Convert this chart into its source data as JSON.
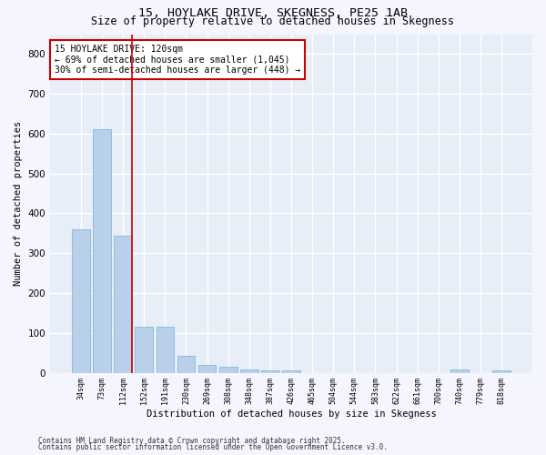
{
  "title": "15, HOYLAKE DRIVE, SKEGNESS, PE25 1AB",
  "subtitle": "Size of property relative to detached houses in Skegness",
  "xlabel": "Distribution of detached houses by size in Skegness",
  "ylabel": "Number of detached properties",
  "categories": [
    "34sqm",
    "73sqm",
    "112sqm",
    "152sqm",
    "191sqm",
    "230sqm",
    "269sqm",
    "308sqm",
    "348sqm",
    "387sqm",
    "426sqm",
    "465sqm",
    "504sqm",
    "544sqm",
    "583sqm",
    "622sqm",
    "661sqm",
    "700sqm",
    "740sqm",
    "779sqm",
    "818sqm"
  ],
  "values": [
    360,
    611,
    343,
    116,
    116,
    42,
    20,
    16,
    8,
    6,
    6,
    0,
    0,
    0,
    0,
    0,
    0,
    0,
    8,
    0,
    6
  ],
  "bar_color": "#b8d0ea",
  "bar_edge_color": "#7aafd4",
  "bg_color": "#e8eef8",
  "grid_color": "#ffffff",
  "vline_x_index": 2.42,
  "vline_color": "#cc0000",
  "annotation_text": "15 HOYLAKE DRIVE: 120sqm\n← 69% of detached houses are smaller (1,045)\n30% of semi-detached houses are larger (448) →",
  "annotation_box_color": "#cc0000",
  "ylim": [
    0,
    850
  ],
  "yticks": [
    0,
    100,
    200,
    300,
    400,
    500,
    600,
    700,
    800
  ],
  "footer_line1": "Contains HM Land Registry data © Crown copyright and database right 2025.",
  "footer_line2": "Contains public sector information licensed under the Open Government Licence v3.0.",
  "title_fontsize": 9.5,
  "subtitle_fontsize": 8.5,
  "fig_bg_color": "#f5f5ff"
}
